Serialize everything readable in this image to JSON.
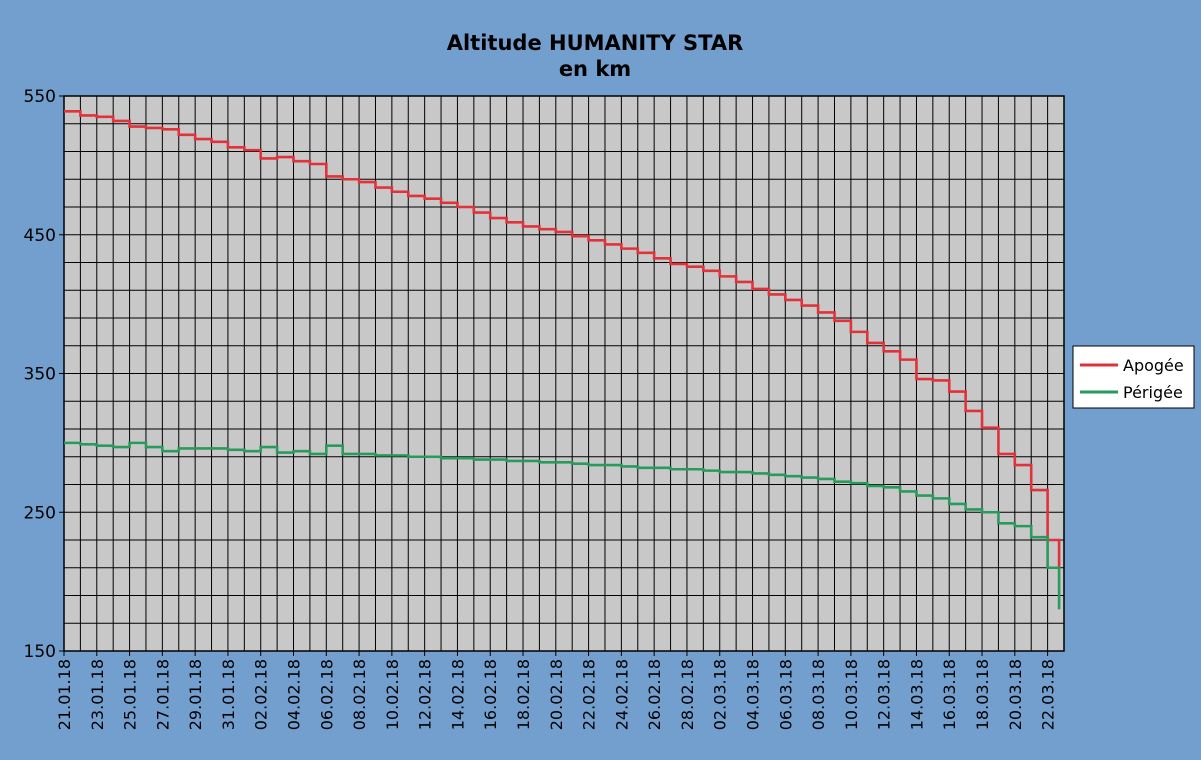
{
  "chart_data": {
    "type": "line",
    "title": "Altitude HUMANITY STAR",
    "subtitle": "en km",
    "xlabel": "",
    "ylabel": "",
    "ylim": [
      150,
      550
    ],
    "yticks": [
      "550",
      "450",
      "350",
      "250",
      "150"
    ],
    "y_tick_values": [
      550,
      450,
      350,
      250,
      150
    ],
    "xlim": [
      21,
      82
    ],
    "x_tick_values": [
      21,
      23,
      25,
      27,
      29,
      31,
      33,
      35,
      37,
      39,
      41,
      43,
      45,
      47,
      49,
      51,
      53,
      55,
      57,
      59,
      61,
      63,
      65,
      67,
      69,
      71,
      73,
      75,
      77,
      79,
      81
    ],
    "xticks": [
      "21.01.18",
      "23.01.18",
      "25.01.18",
      "27.01.18",
      "29.01.18",
      "31.01.18",
      "02.02.18",
      "04.02.18",
      "06.02.18",
      "08.02.18",
      "10.02.18",
      "12.02.18",
      "14.02.18",
      "16.02.18",
      "18.02.18",
      "20.02.18",
      "22.02.18",
      "24.02.18",
      "26.02.18",
      "28.02.18",
      "02.03.18",
      "04.03.18",
      "06.03.18",
      "08.03.18",
      "10.03.18",
      "12.03.18",
      "14.03.18",
      "16.03.18",
      "18.03.18",
      "20.03.18",
      "22.03.18"
    ],
    "grid": true,
    "legend_position": "right",
    "series": [
      {
        "name": "Apogée",
        "color": "#e0323a",
        "x": [
          21,
          22,
          23,
          24,
          25,
          26,
          27,
          28,
          29,
          30,
          31,
          32,
          33,
          34,
          35,
          36,
          37,
          38,
          39,
          40,
          41,
          42,
          43,
          44,
          45,
          46,
          47,
          48,
          49,
          50,
          51,
          52,
          53,
          54,
          55,
          56,
          57,
          58,
          59,
          60,
          61,
          62,
          63,
          64,
          65,
          66,
          67,
          68,
          69,
          70,
          71,
          72,
          73,
          74,
          75,
          76,
          77,
          78,
          79,
          80,
          81,
          81.7
        ],
        "y": [
          539,
          536,
          535,
          532,
          528,
          527,
          526,
          522,
          519,
          517,
          513,
          511,
          505,
          506,
          503,
          501,
          492,
          490,
          488,
          484,
          481,
          478,
          476,
          473,
          470,
          466,
          462,
          459,
          456,
          454,
          452,
          449,
          446,
          443,
          440,
          437,
          433,
          429,
          427,
          424,
          420,
          416,
          411,
          407,
          403,
          399,
          394,
          388,
          380,
          372,
          366,
          360,
          346,
          345,
          337,
          323,
          311,
          292,
          284,
          266,
          230,
          210
        ]
      },
      {
        "name": "Périgée",
        "color": "#2a9a5c",
        "x": [
          21,
          22,
          23,
          24,
          25,
          26,
          27,
          28,
          29,
          30,
          31,
          32,
          33,
          34,
          35,
          36,
          37,
          38,
          39,
          40,
          41,
          42,
          43,
          44,
          45,
          46,
          47,
          48,
          49,
          50,
          51,
          52,
          53,
          54,
          55,
          56,
          57,
          58,
          59,
          60,
          61,
          62,
          63,
          64,
          65,
          66,
          67,
          68,
          69,
          70,
          71,
          72,
          73,
          74,
          75,
          76,
          77,
          78,
          79,
          80,
          81,
          81.7
        ],
        "y": [
          300,
          299,
          298,
          297,
          300,
          297,
          294,
          296,
          296,
          296,
          295,
          294,
          297,
          293,
          294,
          292,
          298,
          292,
          292,
          291,
          291,
          290,
          290,
          289,
          289,
          288,
          288,
          287,
          287,
          286,
          286,
          285,
          284,
          284,
          283,
          282,
          282,
          281,
          281,
          280,
          279,
          279,
          278,
          277,
          276,
          275,
          274,
          272,
          271,
          269,
          268,
          265,
          262,
          260,
          256,
          252,
          250,
          242,
          240,
          232,
          210,
          180
        ]
      }
    ]
  }
}
